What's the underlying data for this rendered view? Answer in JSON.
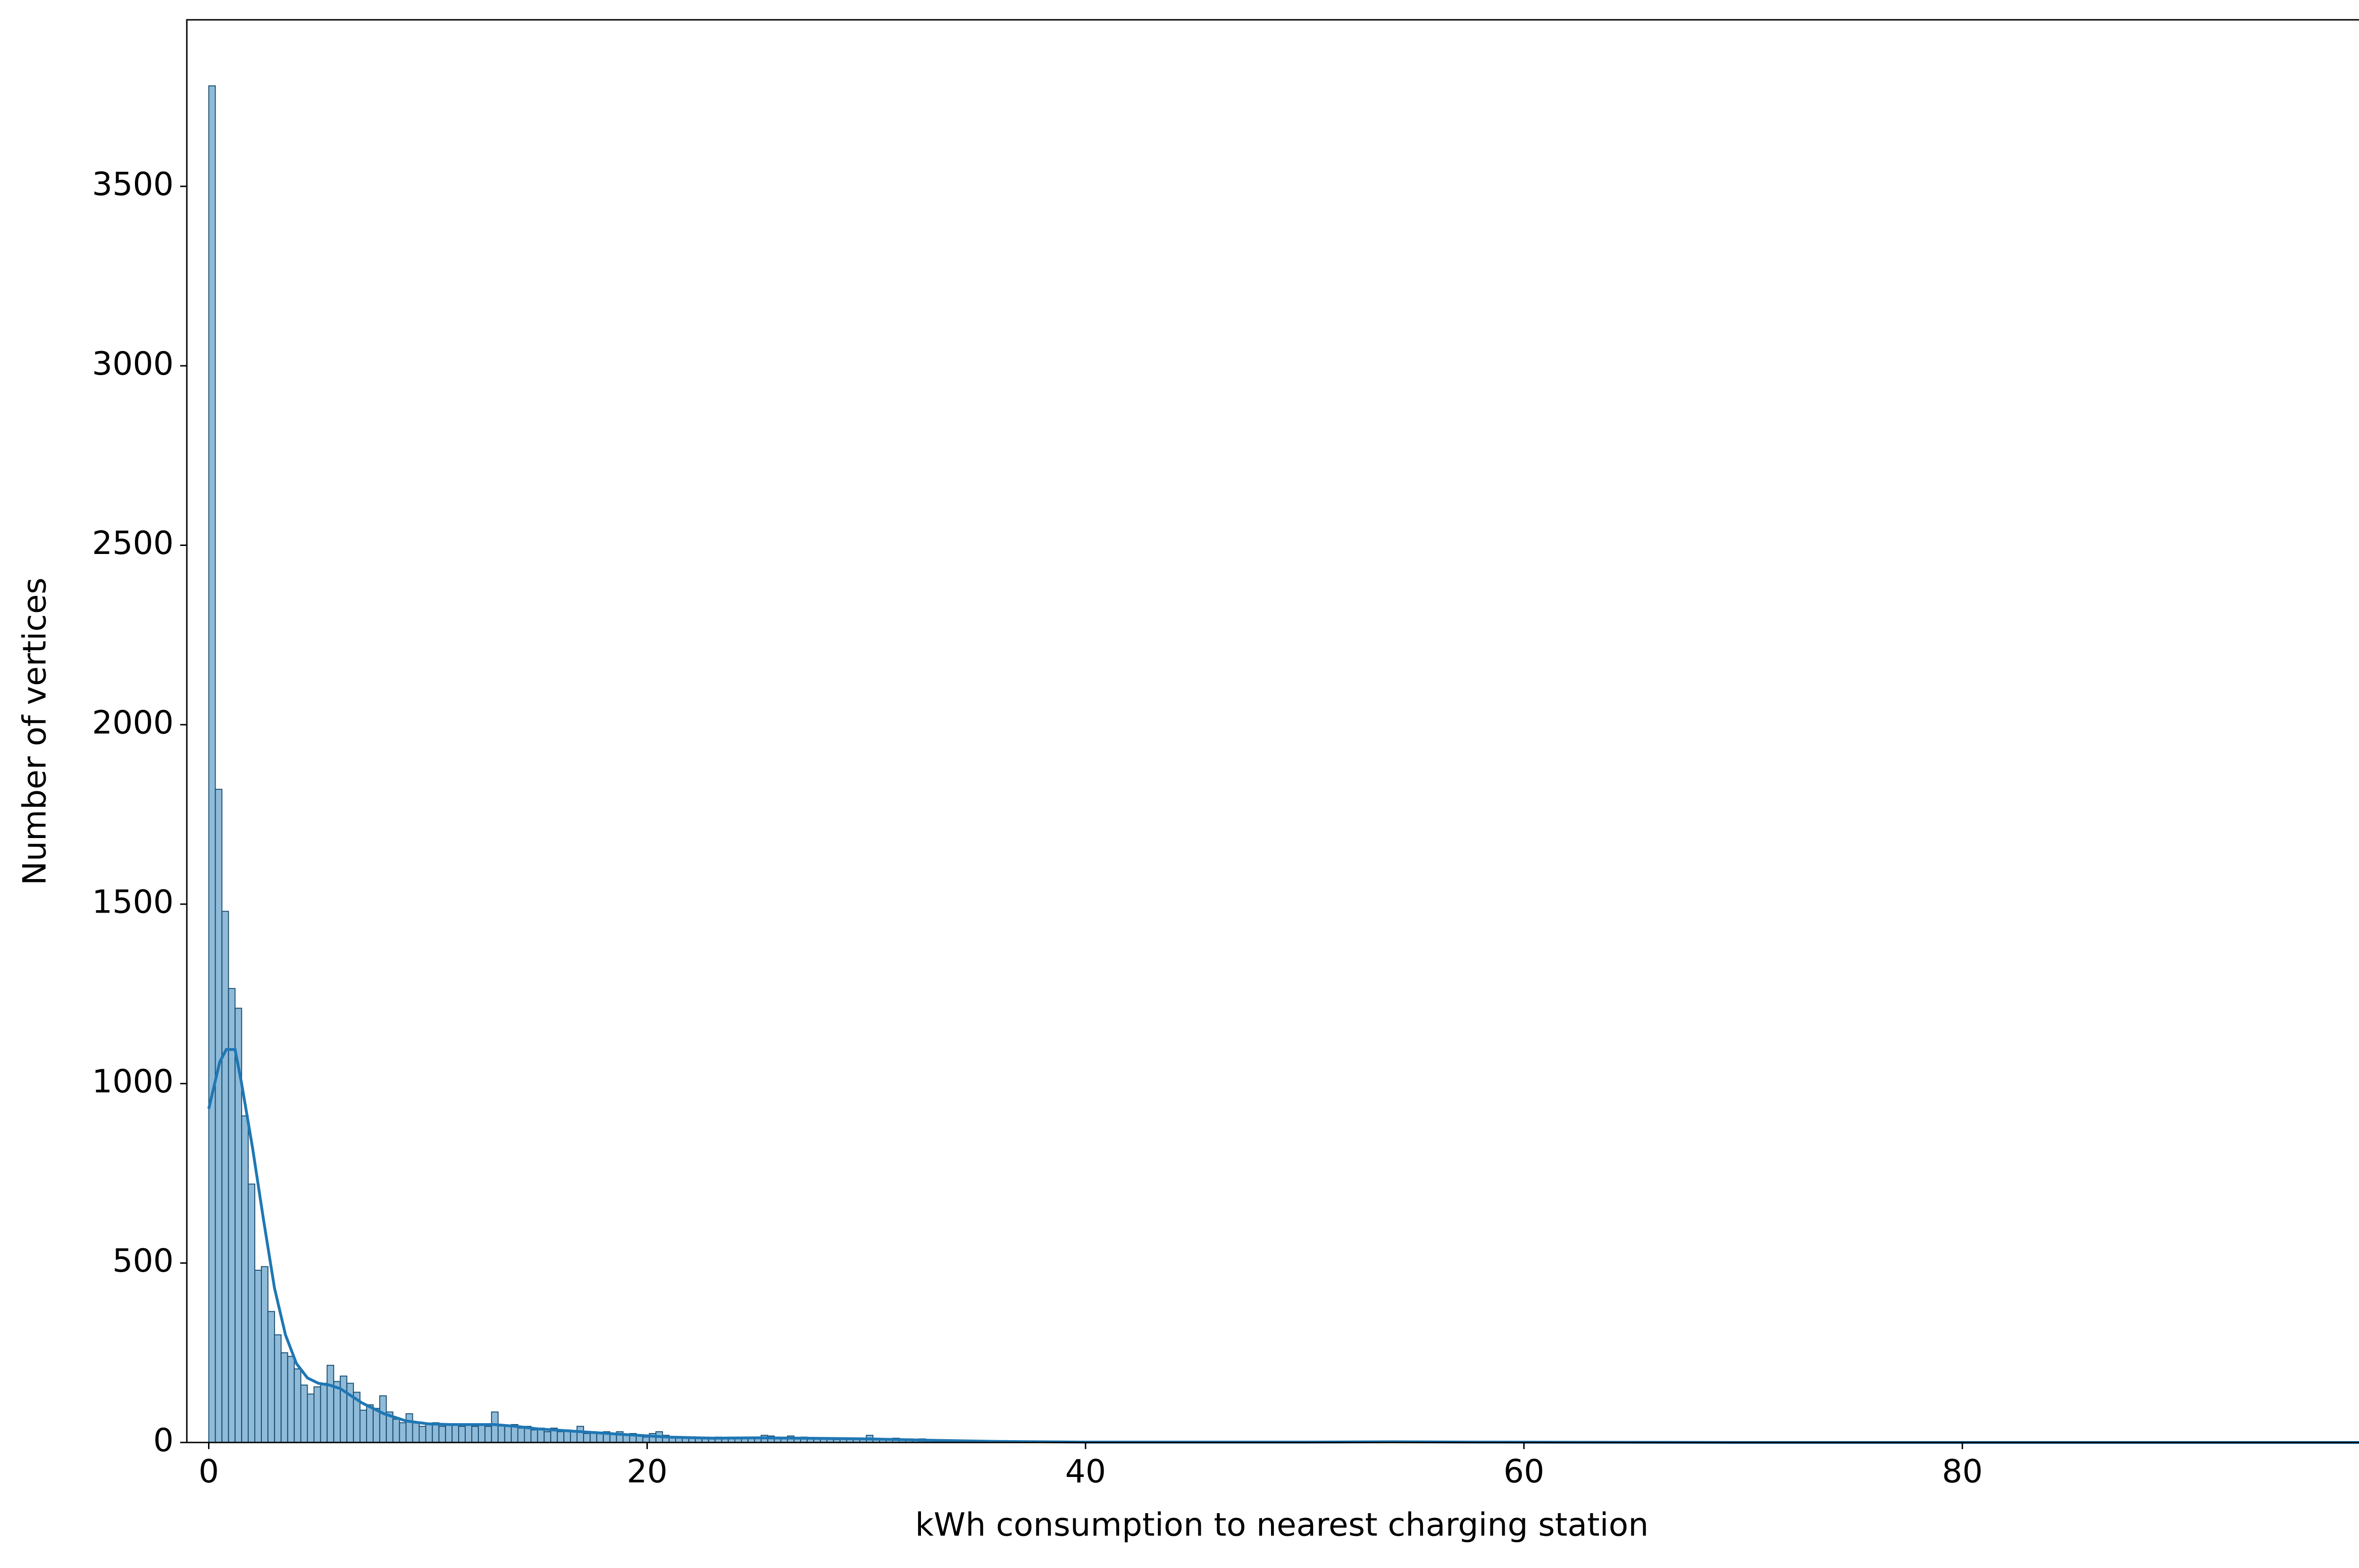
{
  "chart_data": {
    "type": "histogram",
    "xlabel": "kWh consumption to nearest charging station",
    "ylabel": "Number of vertices",
    "color": "#1f77b4",
    "edgecolor": "#1b4f72",
    "bins": [
      0,
      0.3,
      0.6,
      0.9,
      1.2,
      1.5,
      1.8,
      2.1,
      2.4,
      2.7,
      3,
      3.3,
      3.6,
      3.9,
      4.2,
      4.5,
      4.8,
      5.1,
      5.4,
      5.7,
      6,
      6.3,
      6.6,
      6.9,
      7.2,
      7.5,
      7.8,
      8.1,
      8.4,
      8.7,
      9,
      9.3,
      9.6,
      9.9,
      10.2,
      10.5,
      10.8,
      11.1,
      11.4,
      11.7,
      12,
      12.3,
      12.6,
      12.9,
      13.2,
      13.5,
      13.8,
      14.1,
      14.4,
      14.7,
      15,
      15.3,
      15.6,
      15.9,
      16.2,
      16.5,
      16.8,
      17.1,
      17.4,
      17.7,
      18,
      18.3,
      18.6,
      18.9,
      19.2,
      19.5,
      19.8,
      20.1,
      20.4,
      20.7,
      21,
      21.3,
      21.6,
      21.9,
      22.2,
      22.5,
      22.8,
      23.1,
      23.4,
      23.7,
      24,
      24.3,
      24.6,
      24.9,
      25.2,
      25.5,
      25.8,
      26.1,
      26.4,
      26.7,
      27,
      27.3,
      27.6,
      27.9,
      28.2,
      28.5,
      28.8,
      29.1,
      29.4,
      29.7,
      30,
      30.3,
      30.6,
      30.9,
      31.2,
      31.5,
      31.8,
      32.1,
      32.4,
      32.7,
      33,
      33.3,
      33.6,
      33.9,
      34.2
    ],
    "values": [
      3780,
      1820,
      1480,
      1265,
      1210,
      910,
      720,
      480,
      490,
      365,
      300,
      250,
      240,
      205,
      160,
      135,
      155,
      165,
      215,
      170,
      185,
      165,
      140,
      90,
      105,
      95,
      130,
      85,
      65,
      55,
      80,
      55,
      45,
      50,
      55,
      45,
      50,
      50,
      45,
      50,
      45,
      50,
      45,
      85,
      50,
      45,
      50,
      40,
      45,
      35,
      40,
      30,
      40,
      30,
      35,
      30,
      45,
      25,
      30,
      25,
      30,
      25,
      30,
      20,
      25,
      20,
      15,
      25,
      30,
      20,
      15,
      15,
      12,
      15,
      12,
      15,
      12,
      15,
      12,
      15,
      12,
      15,
      12,
      15,
      20,
      18,
      15,
      12,
      18,
      12,
      15,
      10,
      12,
      10,
      12,
      8,
      10,
      8,
      10,
      8,
      20,
      12,
      10,
      8,
      12,
      8,
      10,
      6,
      10,
      5,
      6,
      4,
      3,
      2
    ],
    "kde": {
      "x": [
        0,
        0.5,
        0.8,
        1.2,
        1.5,
        2,
        2.5,
        3,
        3.5,
        4,
        4.5,
        5,
        5.5,
        6,
        6.5,
        7,
        8,
        9,
        10,
        11,
        12,
        13,
        14,
        15,
        17,
        19,
        21,
        23,
        25,
        27,
        30,
        33,
        36,
        40,
        50,
        54,
        58,
        70,
        98.5
      ],
      "values": [
        930,
        1060,
        1095,
        1095,
        1000,
        820,
        620,
        430,
        300,
        220,
        180,
        165,
        160,
        150,
        130,
        110,
        80,
        60,
        52,
        50,
        50,
        50,
        45,
        38,
        30,
        22,
        15,
        12,
        13,
        12,
        10,
        6,
        3,
        1,
        1,
        2,
        1,
        0,
        0
      ]
    },
    "xlim": [
      -1,
      99
    ],
    "ylim": [
      0,
      3964
    ],
    "xticks": [
      0,
      20,
      40,
      60,
      80
    ],
    "yticks": [
      0,
      500,
      1000,
      1500,
      2000,
      2500,
      3000,
      3500
    ],
    "grid": false
  }
}
